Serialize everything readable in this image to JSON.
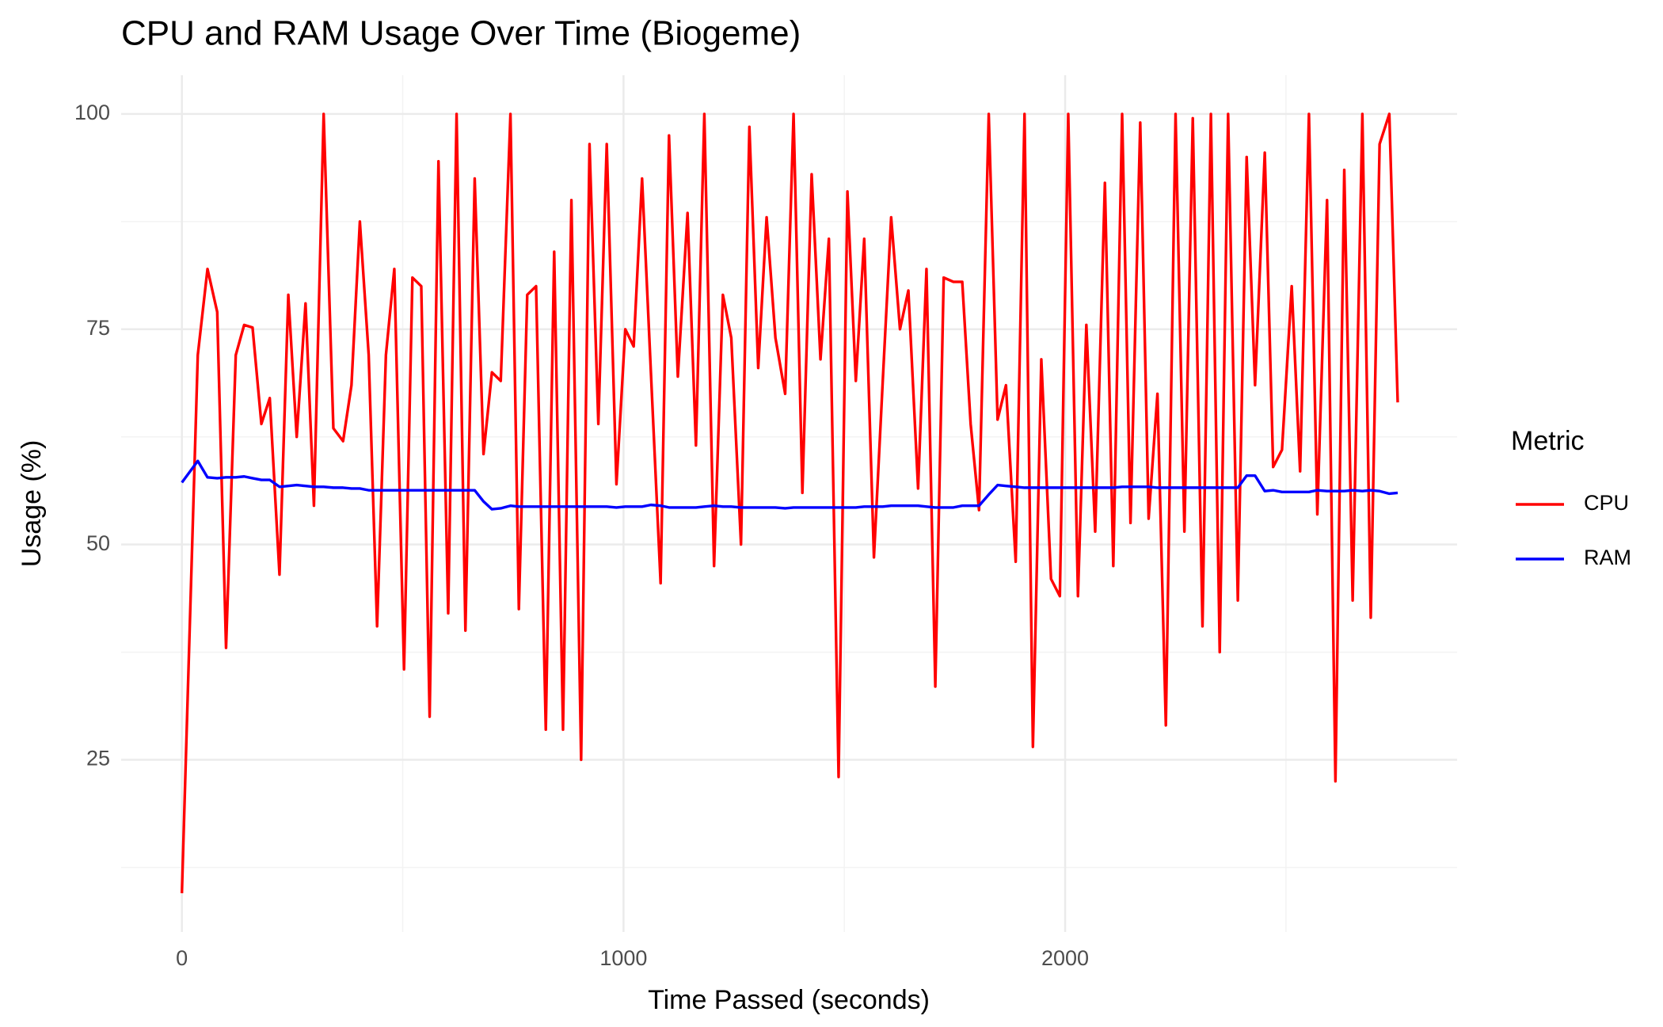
{
  "chart_data": {
    "type": "line",
    "title": "CPU and RAM Usage Over Time (Biogeme)",
    "x_label": "Time Passed (seconds)",
    "y_label": "Usage (%)",
    "legend_title": "Metric",
    "legend_position": "right",
    "grid": true,
    "xlim": [
      -137.5,
      2887.5
    ],
    "ylim": [
      5,
      104.5
    ],
    "xticks": [
      0,
      1000,
      2000
    ],
    "yticks": [
      25,
      50,
      75,
      100
    ],
    "x_minor_ticks": [
      500,
      1500,
      2500
    ],
    "y_minor_ticks": [
      12.5,
      37.5,
      62.5,
      87.5
    ],
    "x": [
      0,
      36,
      58,
      80,
      100,
      122,
      141,
      160,
      180,
      199,
      221,
      241,
      260,
      280,
      299,
      321,
      343,
      365,
      384,
      403,
      423,
      442,
      462,
      481,
      503,
      522,
      542,
      561,
      581,
      603,
      622,
      642,
      663,
      683,
      702,
      722,
      744,
      763,
      782,
      802,
      824,
      843,
      863,
      882,
      904,
      923,
      943,
      962,
      984,
      1004,
      1023,
      1042,
      1062,
      1084,
      1103,
      1123,
      1145,
      1164,
      1183,
      1205,
      1225,
      1244,
      1266,
      1285,
      1305,
      1324,
      1344,
      1366,
      1385,
      1405,
      1426,
      1446,
      1465,
      1487,
      1507,
      1526,
      1545,
      1567,
      1587,
      1606,
      1626,
      1645,
      1667,
      1686,
      1706,
      1725,
      1747,
      1767,
      1786,
      1805,
      1827,
      1847,
      1866,
      1888,
      1908,
      1927,
      1946,
      1968,
      1988,
      2007,
      2029,
      2048,
      2068,
      2090,
      2109,
      2129,
      2148,
      2170,
      2189,
      2209,
      2228,
      2250,
      2270,
      2289,
      2311,
      2330,
      2350,
      2369,
      2391,
      2411,
      2430,
      2452,
      2471,
      2491,
      2513,
      2532,
      2552,
      2571,
      2593,
      2612,
      2632,
      2651,
      2673,
      2692,
      2712,
      2734,
      2753
    ],
    "series": [
      {
        "name": "CPU",
        "color": "#ff0000",
        "values": [
          9.5,
          72,
          82,
          77,
          38,
          72,
          75.5,
          75.2,
          64,
          67,
          46.5,
          79,
          62.5,
          78,
          54.5,
          100,
          63.5,
          62,
          68.5,
          87.5,
          72,
          40.5,
          72,
          82,
          35.5,
          81,
          80,
          30,
          94.5,
          42,
          100,
          40,
          92.5,
          60.5,
          70,
          69,
          100,
          42.5,
          79,
          80,
          28.5,
          84,
          28.5,
          90,
          25,
          96.5,
          64,
          96.5,
          57,
          75,
          73,
          92.5,
          70,
          45.5,
          97.5,
          69.5,
          88.5,
          61.5,
          100,
          47.5,
          79,
          74,
          50,
          98.5,
          70.5,
          88,
          74,
          67.5,
          100,
          56,
          93,
          71.5,
          85.5,
          23,
          91,
          69,
          85.5,
          48.5,
          69,
          88,
          75,
          79.5,
          56.5,
          82,
          33.5,
          81,
          80.5,
          80.5,
          64,
          54,
          100,
          64.5,
          68.5,
          48,
          100,
          26.5,
          71.5,
          46,
          44,
          100,
          44,
          75.5,
          51.5,
          92,
          47.5,
          100,
          52.5,
          99,
          53,
          67.5,
          29,
          100,
          51.5,
          99.5,
          40.5,
          100,
          37.5,
          100,
          43.5,
          95,
          68.5,
          95.5,
          59,
          61,
          80,
          58.5,
          100,
          53.5,
          90,
          22.5,
          93.5,
          43.5,
          100,
          41.5,
          96.5,
          100,
          66.5
        ]
      },
      {
        "name": "RAM",
        "color": "#0000ff",
        "values": [
          57.2,
          59.7,
          57.8,
          57.7,
          57.8,
          57.8,
          57.9,
          57.7,
          57.5,
          57.5,
          56.7,
          56.8,
          56.9,
          56.8,
          56.7,
          56.7,
          56.6,
          56.6,
          56.5,
          56.5,
          56.3,
          56.3,
          56.3,
          56.3,
          56.3,
          56.3,
          56.3,
          56.3,
          56.3,
          56.3,
          56.3,
          56.3,
          56.3,
          55,
          54.1,
          54.2,
          54.5,
          54.4,
          54.4,
          54.4,
          54.4,
          54.4,
          54.4,
          54.4,
          54.4,
          54.4,
          54.4,
          54.4,
          54.3,
          54.4,
          54.4,
          54.4,
          54.6,
          54.5,
          54.3,
          54.3,
          54.3,
          54.3,
          54.4,
          54.5,
          54.4,
          54.4,
          54.3,
          54.3,
          54.3,
          54.3,
          54.3,
          54.2,
          54.3,
          54.3,
          54.3,
          54.3,
          54.3,
          54.3,
          54.3,
          54.3,
          54.4,
          54.4,
          54.4,
          54.5,
          54.5,
          54.5,
          54.5,
          54.4,
          54.3,
          54.3,
          54.3,
          54.5,
          54.5,
          54.5,
          55.8,
          56.9,
          56.8,
          56.7,
          56.6,
          56.6,
          56.6,
          56.6,
          56.6,
          56.6,
          56.6,
          56.6,
          56.6,
          56.6,
          56.6,
          56.7,
          56.7,
          56.7,
          56.7,
          56.6,
          56.6,
          56.6,
          56.6,
          56.6,
          56.6,
          56.6,
          56.6,
          56.6,
          56.6,
          58,
          58,
          56.2,
          56.3,
          56.1,
          56.1,
          56.1,
          56.1,
          56.3,
          56.2,
          56.2,
          56.2,
          56.3,
          56.2,
          56.3,
          56.2,
          55.9,
          56
        ]
      }
    ]
  }
}
